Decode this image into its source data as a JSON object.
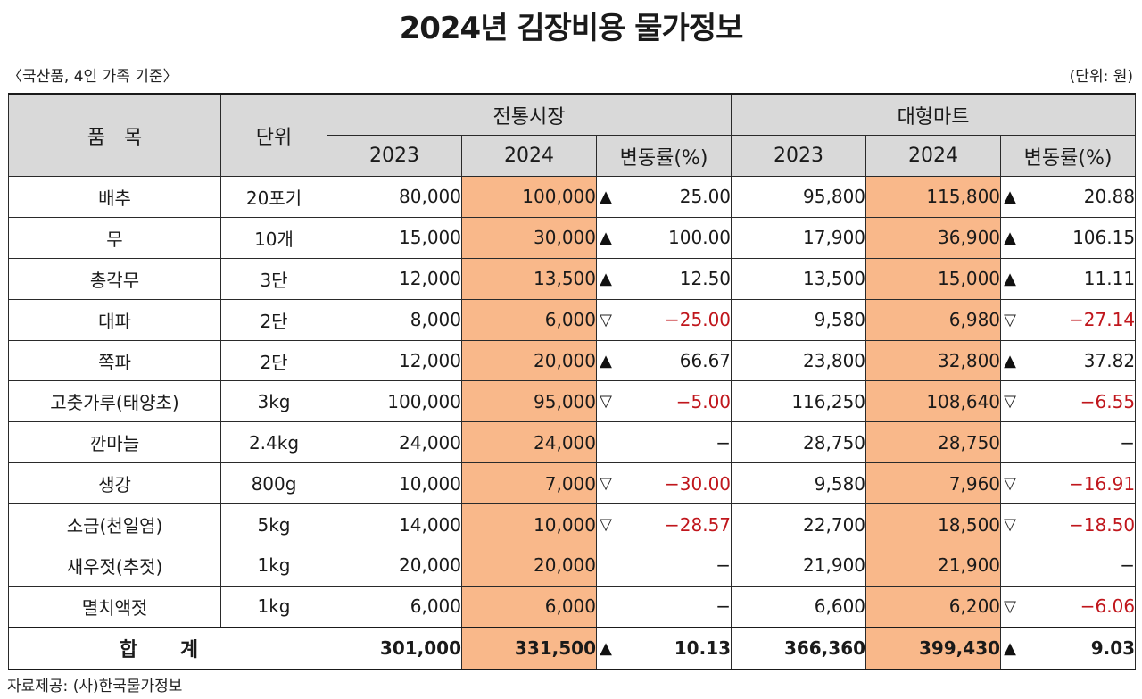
{
  "title": "2024년 김장비용 물가정보",
  "subtitle_left": "〈국산품, 4인 가족 기준〉",
  "subtitle_right": "(단위: 원)",
  "source": "자료제공: (사)한국물가정보",
  "headers": {
    "item": "품   목",
    "unit": "단위",
    "market_group": "전통시장",
    "mart_group": "대형마트",
    "y2023": "2023",
    "y2024": "2024",
    "change": "변동률(%)"
  },
  "rows": [
    {
      "item": "배추",
      "unit": "20포기",
      "m2023": "80,000",
      "m2024": "100,000",
      "mdir": "up",
      "mchg": "25.00",
      "t2023": "95,800",
      "t2024": "115,800",
      "tdir": "up",
      "tchg": "20.88"
    },
    {
      "item": "무",
      "unit": "10개",
      "m2023": "15,000",
      "m2024": "30,000",
      "mdir": "up",
      "mchg": "100.00",
      "t2023": "17,900",
      "t2024": "36,900",
      "tdir": "up",
      "tchg": "106.15"
    },
    {
      "item": "총각무",
      "unit": "3단",
      "m2023": "12,000",
      "m2024": "13,500",
      "mdir": "up",
      "mchg": "12.50",
      "t2023": "13,500",
      "t2024": "15,000",
      "tdir": "up",
      "tchg": "11.11"
    },
    {
      "item": "대파",
      "unit": "2단",
      "m2023": "8,000",
      "m2024": "6,000",
      "mdir": "down",
      "mchg": "−25.00",
      "t2023": "9,580",
      "t2024": "6,980",
      "tdir": "down",
      "tchg": "−27.14"
    },
    {
      "item": "쪽파",
      "unit": "2단",
      "m2023": "12,000",
      "m2024": "20,000",
      "mdir": "up",
      "mchg": "66.67",
      "t2023": "23,800",
      "t2024": "32,800",
      "tdir": "up",
      "tchg": "37.82"
    },
    {
      "item": "고춧가루(태양초)",
      "unit": "3kg",
      "m2023": "100,000",
      "m2024": "95,000",
      "mdir": "down",
      "mchg": "−5.00",
      "t2023": "116,250",
      "t2024": "108,640",
      "tdir": "down",
      "tchg": "−6.55"
    },
    {
      "item": "깐마늘",
      "unit": "2.4kg",
      "m2023": "24,000",
      "m2024": "24,000",
      "mdir": "none",
      "mchg": "−",
      "t2023": "28,750",
      "t2024": "28,750",
      "tdir": "none",
      "tchg": "−"
    },
    {
      "item": "생강",
      "unit": "800g",
      "m2023": "10,000",
      "m2024": "7,000",
      "mdir": "down",
      "mchg": "−30.00",
      "t2023": "9,580",
      "t2024": "7,960",
      "tdir": "down",
      "tchg": "−16.91"
    },
    {
      "item": "소금(천일염)",
      "unit": "5kg",
      "m2023": "14,000",
      "m2024": "10,000",
      "mdir": "down",
      "mchg": "−28.57",
      "t2023": "22,700",
      "t2024": "18,500",
      "tdir": "down",
      "tchg": "−18.50"
    },
    {
      "item": "새우젓(추젓)",
      "unit": "1kg",
      "m2023": "20,000",
      "m2024": "20,000",
      "mdir": "none",
      "mchg": "−",
      "t2023": "21,900",
      "t2024": "21,900",
      "tdir": "none",
      "tchg": "−"
    },
    {
      "item": "멸치액젓",
      "unit": "1kg",
      "m2023": "6,000",
      "m2024": "6,000",
      "mdir": "none",
      "mchg": "−",
      "t2023": "6,600",
      "t2024": "6,200",
      "tdir": "down",
      "tchg": "−6.06"
    }
  ],
  "total": {
    "label": "합 계",
    "m2023": "301,000",
    "m2024": "331,500",
    "mdir": "up",
    "mchg": "10.13",
    "t2023": "366,360",
    "t2024": "399,430",
    "tdir": "up",
    "tchg": "9.03"
  },
  "symbols": {
    "up": "▲",
    "down": "▽"
  },
  "colors": {
    "header_bg": "#d9d9d9",
    "highlight_2024": "#f9b88a",
    "negative": "#c0161c"
  }
}
